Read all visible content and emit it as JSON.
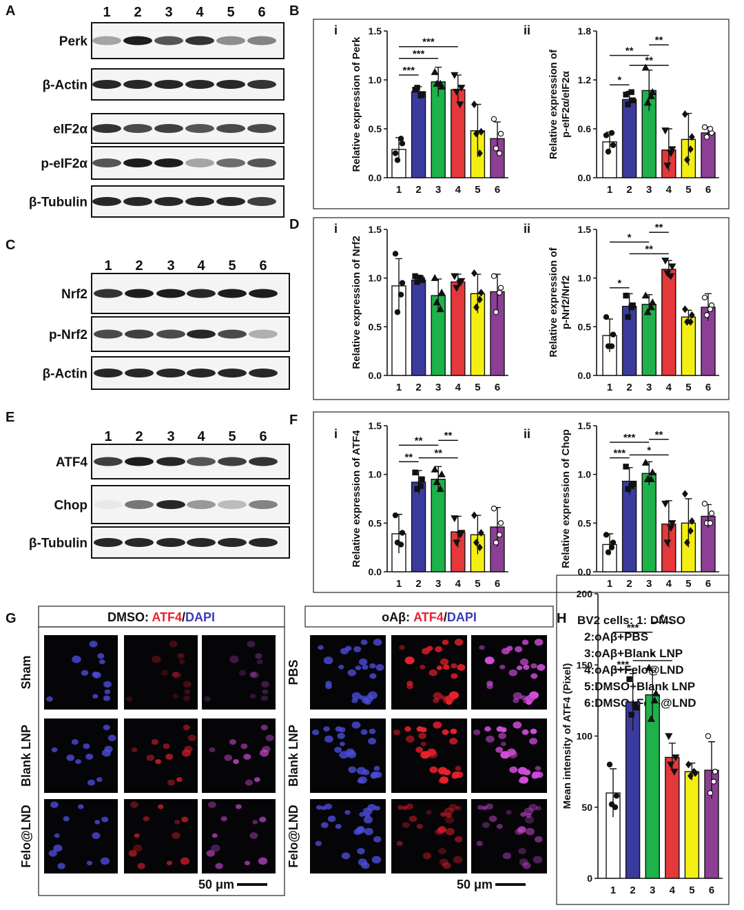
{
  "panel_letters": [
    "A",
    "B",
    "C",
    "D",
    "E",
    "F",
    "G",
    "H"
  ],
  "blots": [
    {
      "lanes": [
        "1",
        "2",
        "3",
        "4",
        "5",
        "6"
      ],
      "rows": [
        "Perk",
        "β-Actin",
        "eIF2α",
        "p-eIF2α",
        "β-Tubulin"
      ]
    },
    {
      "lanes": [
        "1",
        "2",
        "3",
        "4",
        "5",
        "6"
      ],
      "rows": [
        "Nrf2",
        "p-Nrf2",
        "β-Actin"
      ]
    },
    {
      "lanes": [
        "1",
        "2",
        "3",
        "4",
        "5",
        "6"
      ],
      "rows": [
        "ATF4",
        "Chop",
        "β-Tubulin"
      ]
    }
  ],
  "microscopy": [
    {
      "title": [
        "DMSO: ",
        "ATF4",
        "/",
        "DAPI"
      ],
      "rows": [
        "Sham",
        "Blank LNP",
        "Felo@LND"
      ],
      "scale_bar": "50 μm"
    },
    {
      "title": [
        "oAβ: ",
        "ATF4",
        "/",
        "DAPI"
      ],
      "rows": [
        "PBS",
        "Blank LNP",
        "Felo@LND"
      ],
      "scale_bar": "50 μm"
    }
  ],
  "legend": [
    "BV2 cells: 1: DMSO",
    "2:oAβ+PBS",
    "3:oAβ+Blank LNP",
    "4:oAβ+Felo@LND",
    "5:DMSO+Blank LNP",
    "6:DMSO+Felo@LND"
  ],
  "chart_data": [
    {
      "type": "bar",
      "subpanel": "i",
      "ylabel": [
        "Relative expression of Perk"
      ],
      "categories": [
        "1",
        "2",
        "3",
        "4",
        "5",
        "6"
      ],
      "values": [
        0.29,
        0.88,
        0.98,
        0.9,
        0.48,
        0.4
      ],
      "errors": [
        0.12,
        0.05,
        0.15,
        0.15,
        0.27,
        0.17
      ],
      "points": [
        [
          0.25,
          0.35,
          0.18,
          0.4
        ],
        [
          0.9,
          0.85,
          0.92,
          0.84
        ],
        [
          1.08,
          0.93,
          0.96,
          0.96
        ],
        [
          1.05,
          0.92,
          0.88,
          0.75
        ],
        [
          0.75,
          0.47,
          0.45,
          0.25
        ],
        [
          0.6,
          0.45,
          0.3,
          0.25
        ]
      ],
      "colors": [
        "#ffffff",
        "#3b3b9e",
        "#1fb14a",
        "#e5383b",
        "#f4ef12",
        "#8c3f94"
      ],
      "markers": [
        "circle",
        "square",
        "triangle",
        "triangle-down",
        "diamond",
        "circle-open"
      ],
      "ylim": [
        0,
        1.5
      ],
      "yticks": [
        {
          "value": 0,
          "label": "0.0"
        },
        {
          "value": 0.5,
          "label": "0.5"
        },
        {
          "value": 1,
          "label": "1.0"
        },
        {
          "value": 1.5,
          "label": "1.5"
        }
      ],
      "significance": [
        {
          "label": "***",
          "from": "1",
          "to": "2",
          "y": 1.05
        },
        {
          "label": "***",
          "from": "1",
          "to": "3",
          "y": 1.22
        },
        {
          "label": "***",
          "from": "1",
          "to": "4",
          "y": 1.34
        }
      ]
    },
    {
      "type": "bar",
      "subpanel": "ii",
      "ylabel": [
        "Relative expression of",
        "p-eIF2α/eIF2α"
      ],
      "categories": [
        "1",
        "2",
        "3",
        "4",
        "5",
        "6"
      ],
      "values": [
        0.44,
        0.96,
        1.07,
        0.34,
        0.47,
        0.55
      ],
      "errors": [
        0.12,
        0.1,
        0.25,
        0.26,
        0.32,
        0.07
      ],
      "points": [
        [
          0.52,
          0.4,
          0.32,
          0.55
        ],
        [
          1.02,
          0.95,
          0.9,
          1.05
        ],
        [
          1.35,
          1.05,
          0.92,
          1.0
        ],
        [
          0.58,
          0.35,
          0.15,
          0.3
        ],
        [
          0.78,
          0.5,
          0.22,
          0.35
        ],
        [
          0.62,
          0.55,
          0.5,
          0.6
        ]
      ],
      "colors": [
        "#ffffff",
        "#3b3b9e",
        "#1fb14a",
        "#e5383b",
        "#f4ef12",
        "#8c3f94"
      ],
      "markers": [
        "circle",
        "square",
        "triangle",
        "triangle-down",
        "diamond",
        "circle-open"
      ],
      "ylim": [
        0,
        1.8
      ],
      "yticks": [
        {
          "value": 0,
          "label": "0.0"
        },
        {
          "value": 0.6,
          "label": "0.6"
        },
        {
          "value": 1.2,
          "label": "1.2"
        },
        {
          "value": 1.8,
          "label": "1.8"
        }
      ],
      "significance": [
        {
          "label": "*",
          "from": "1",
          "to": "2",
          "y": 1.14
        },
        {
          "label": "**",
          "from": "1",
          "to": "3",
          "y": 1.5
        },
        {
          "label": "**",
          "from": "2",
          "to": "4",
          "y": 1.38
        },
        {
          "label": "**",
          "from": "3",
          "to": "4",
          "y": 1.63
        }
      ]
    },
    {
      "type": "bar",
      "subpanel": "i",
      "ylabel": [
        "Relative expression of Nrf2"
      ],
      "categories": [
        "1",
        "2",
        "3",
        "4",
        "5",
        "6"
      ],
      "values": [
        0.92,
        0.98,
        0.82,
        0.96,
        0.84,
        0.86
      ],
      "errors": [
        0.28,
        0.05,
        0.17,
        0.08,
        0.2,
        0.18
      ],
      "points": [
        [
          1.25,
          0.95,
          0.65,
          0.83
        ],
        [
          1.02,
          0.98,
          0.96,
          1.0
        ],
        [
          1.0,
          0.85,
          0.75,
          0.68
        ],
        [
          1.02,
          0.97,
          0.9,
          0.95
        ],
        [
          1.05,
          0.85,
          0.7,
          0.78
        ],
        [
          1.02,
          0.9,
          0.65,
          0.85
        ]
      ],
      "colors": [
        "#ffffff",
        "#3b3b9e",
        "#1fb14a",
        "#e5383b",
        "#f4ef12",
        "#8c3f94"
      ],
      "markers": [
        "circle",
        "square",
        "triangle",
        "triangle-down",
        "diamond",
        "circle-open"
      ],
      "ylim": [
        0,
        1.5
      ],
      "yticks": [
        {
          "value": 0,
          "label": "0.0"
        },
        {
          "value": 0.5,
          "label": "0.5"
        },
        {
          "value": 1,
          "label": "1.0"
        },
        {
          "value": 1.5,
          "label": "1.5"
        }
      ],
      "significance": []
    },
    {
      "type": "bar",
      "subpanel": "ii",
      "ylabel": [
        "Relative expression of",
        "p-Nrf2/Nrf2"
      ],
      "categories": [
        "1",
        "2",
        "3",
        "4",
        "5",
        "6"
      ],
      "values": [
        0.41,
        0.71,
        0.73,
        1.09,
        0.6,
        0.7
      ],
      "errors": [
        0.17,
        0.13,
        0.1,
        0.09,
        0.07,
        0.14
      ],
      "points": [
        [
          0.6,
          0.42,
          0.3,
          0.3
        ],
        [
          0.82,
          0.72,
          0.6,
          0.7
        ],
        [
          0.82,
          0.75,
          0.65,
          0.7
        ],
        [
          1.18,
          1.12,
          1.05,
          1.02
        ],
        [
          0.68,
          0.62,
          0.55,
          0.55
        ],
        [
          0.8,
          0.72,
          0.62,
          0.68
        ]
      ],
      "colors": [
        "#ffffff",
        "#3b3b9e",
        "#1fb14a",
        "#e5383b",
        "#f4ef12",
        "#8c3f94"
      ],
      "markers": [
        "circle",
        "square",
        "triangle",
        "triangle-down",
        "diamond",
        "circle-open"
      ],
      "ylim": [
        0,
        1.5
      ],
      "yticks": [
        {
          "value": 0,
          "label": "0.0"
        },
        {
          "value": 0.5,
          "label": "0.5"
        },
        {
          "value": 1,
          "label": "1.0"
        },
        {
          "value": 1.5,
          "label": "1.5"
        }
      ],
      "significance": [
        {
          "label": "*",
          "from": "1",
          "to": "2",
          "y": 0.9
        },
        {
          "label": "*",
          "from": "1",
          "to": "3",
          "y": 1.37
        },
        {
          "label": "**",
          "from": "2",
          "to": "4",
          "y": 1.25
        },
        {
          "label": "**",
          "from": "3",
          "to": "4",
          "y": 1.47
        }
      ]
    },
    {
      "type": "bar",
      "subpanel": "i",
      "ylabel": [
        "Relative expression of ATF4"
      ],
      "categories": [
        "1",
        "2",
        "3",
        "4",
        "5",
        "6"
      ],
      "values": [
        0.39,
        0.92,
        0.95,
        0.41,
        0.38,
        0.46
      ],
      "errors": [
        0.2,
        0.12,
        0.13,
        0.16,
        0.2,
        0.2
      ],
      "points": [
        [
          0.58,
          0.4,
          0.3,
          0.28
        ],
        [
          1.02,
          0.95,
          0.85,
          0.88
        ],
        [
          1.05,
          1.0,
          0.92,
          0.85
        ],
        [
          0.55,
          0.4,
          0.3,
          0.38
        ],
        [
          0.58,
          0.4,
          0.3,
          0.25
        ],
        [
          0.65,
          0.5,
          0.3,
          0.38
        ]
      ],
      "colors": [
        "#ffffff",
        "#3b3b9e",
        "#1fb14a",
        "#e5383b",
        "#f4ef12",
        "#8c3f94"
      ],
      "markers": [
        "circle",
        "square",
        "triangle",
        "triangle-down",
        "diamond",
        "circle-open"
      ],
      "ylim": [
        0,
        1.5
      ],
      "yticks": [
        {
          "value": 0,
          "label": "0.0"
        },
        {
          "value": 0.5,
          "label": "0.5"
        },
        {
          "value": 1,
          "label": "1.0"
        },
        {
          "value": 1.5,
          "label": "1.5"
        }
      ],
      "significance": [
        {
          "label": "**",
          "from": "1",
          "to": "2",
          "y": 1.13
        },
        {
          "label": "**",
          "from": "1",
          "to": "3",
          "y": 1.3
        },
        {
          "label": "**",
          "from": "2",
          "to": "4",
          "y": 1.17
        },
        {
          "label": "**",
          "from": "3",
          "to": "4",
          "y": 1.35
        }
      ]
    },
    {
      "type": "bar",
      "subpanel": "ii",
      "ylabel": [
        "Relative expression of Chop"
      ],
      "categories": [
        "1",
        "2",
        "3",
        "4",
        "5",
        "6"
      ],
      "values": [
        0.28,
        0.93,
        1.01,
        0.49,
        0.5,
        0.57
      ],
      "errors": [
        0.11,
        0.14,
        0.12,
        0.24,
        0.25,
        0.12
      ],
      "points": [
        [
          0.38,
          0.3,
          0.2,
          0.25
        ],
        [
          1.08,
          0.9,
          0.85,
          0.88
        ],
        [
          1.12,
          1.02,
          0.95,
          0.95
        ],
        [
          0.7,
          0.5,
          0.3,
          0.45
        ],
        [
          0.8,
          0.52,
          0.3,
          0.42
        ],
        [
          0.7,
          0.6,
          0.5,
          0.5
        ]
      ],
      "colors": [
        "#ffffff",
        "#3b3b9e",
        "#1fb14a",
        "#e5383b",
        "#f4ef12",
        "#8c3f94"
      ],
      "markers": [
        "circle",
        "square",
        "triangle",
        "triangle-down",
        "diamond",
        "circle-open"
      ],
      "ylim": [
        0,
        1.5
      ],
      "yticks": [
        {
          "value": 0,
          "label": "0.0"
        },
        {
          "value": 0.5,
          "label": "0.5"
        },
        {
          "value": 1,
          "label": "1.0"
        },
        {
          "value": 1.5,
          "label": "1.5"
        }
      ],
      "significance": [
        {
          "label": "***",
          "from": "1",
          "to": "2",
          "y": 1.17
        },
        {
          "label": "***",
          "from": "1",
          "to": "3",
          "y": 1.33
        },
        {
          "label": "*",
          "from": "2",
          "to": "4",
          "y": 1.2
        },
        {
          "label": "**",
          "from": "3",
          "to": "4",
          "y": 1.36
        }
      ]
    },
    {
      "type": "bar",
      "ylabel": [
        "Mean intensity of ATF4 (Pixel)"
      ],
      "categories": [
        "1",
        "2",
        "3",
        "4",
        "5",
        "6"
      ],
      "values": [
        60,
        124,
        129,
        85,
        75,
        76
      ],
      "errors": [
        17,
        20,
        17,
        10,
        6,
        20
      ],
      "points": [
        [
          80,
          58,
          52,
          50
        ],
        [
          140,
          120,
          115,
          122
        ],
        [
          148,
          130,
          112,
          125
        ],
        [
          100,
          85,
          80,
          75
        ],
        [
          80,
          74,
          72,
          75
        ],
        [
          100,
          75,
          60,
          68
        ]
      ],
      "colors": [
        "#ffffff",
        "#3b3b9e",
        "#1fb14a",
        "#e5383b",
        "#f4ef12",
        "#8c3f94"
      ],
      "markers": [
        "circle",
        "square",
        "triangle",
        "triangle-down",
        "diamond",
        "circle-open"
      ],
      "ylim": [
        0,
        200
      ],
      "yticks": [
        0,
        50,
        100,
        150,
        200
      ],
      "significance": [
        {
          "label": "***",
          "from": "1",
          "to": "2",
          "y": 147
        },
        {
          "label": "***",
          "from": "1",
          "to": "3",
          "y": 173
        },
        {
          "label": "*",
          "from": "2",
          "to": "4",
          "y": 153
        },
        {
          "label": "*",
          "from": "3",
          "to": "4",
          "y": 180
        }
      ]
    }
  ]
}
